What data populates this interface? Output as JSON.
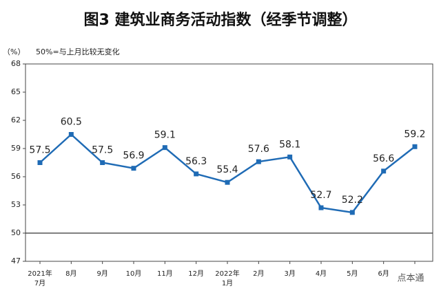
{
  "chart_data": {
    "type": "line",
    "title": "图3  建筑业商务活动指数（经季节调整）",
    "y_axis_label": "（%）",
    "note": "50%=与上月比较无变化",
    "watermark": "点本通",
    "categories": [
      "2021年\n7月",
      "8月",
      "9月",
      "10月",
      "11月",
      "12月",
      "2022年\n1月",
      "2月",
      "3月",
      "4月",
      "5月",
      "6月",
      null
    ],
    "series": [
      {
        "name": "建筑业商务活动指数",
        "color": "#1f6bb5",
        "values": [
          57.5,
          60.5,
          57.5,
          56.9,
          59.1,
          56.3,
          55.4,
          57.6,
          58.1,
          52.7,
          52.2,
          56.6,
          59.2
        ]
      }
    ],
    "ylim": [
      47,
      68
    ],
    "yticks": [
      47,
      50,
      53,
      56,
      59,
      62,
      65,
      68
    ],
    "reference_line": 50,
    "grid": false
  }
}
